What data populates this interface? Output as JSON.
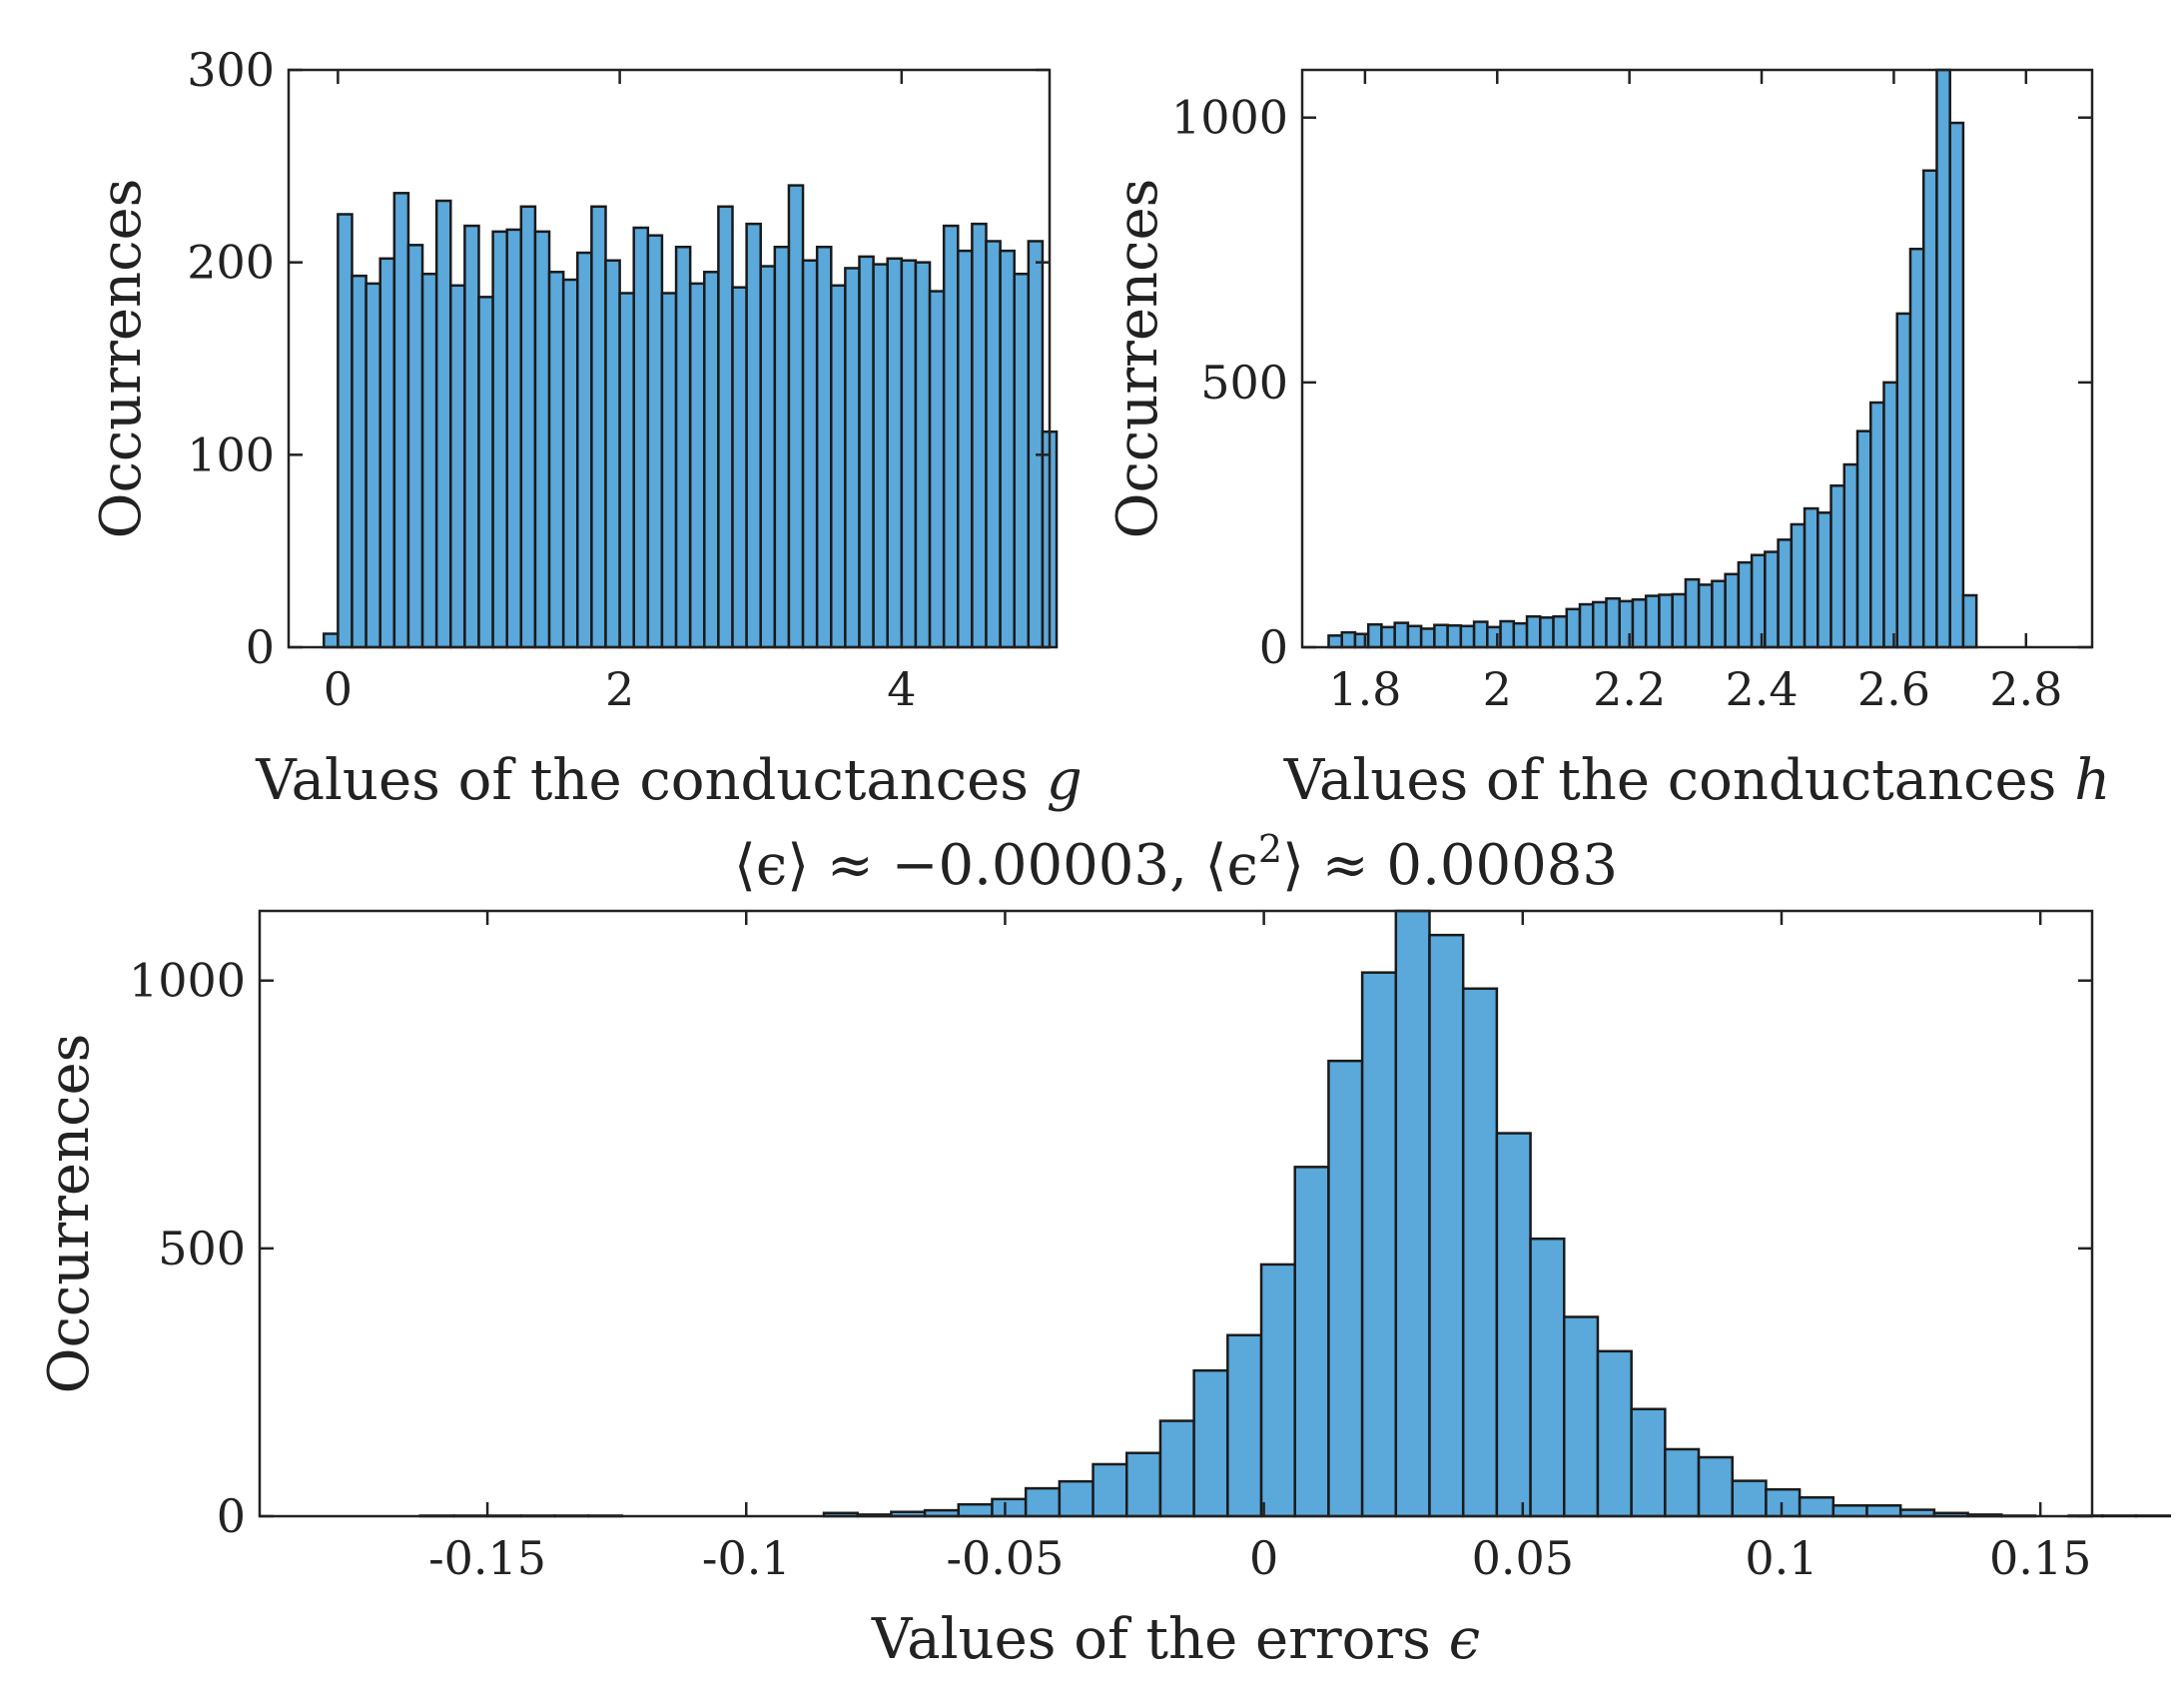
{
  "colors": {
    "bar_fill": "#5ba8da",
    "bar_edge": "#1a1a1a",
    "axis": "#222222",
    "background": "#ffffff"
  },
  "chart_data": [
    {
      "type": "bar",
      "title": "",
      "xlabel": "Values of the conductances g",
      "xlabel_text": "Values of the conductances ",
      "xlabel_symbol": "g",
      "ylabel": "Occurrences",
      "xlim": [
        -0.35,
        5.05
      ],
      "ylim": [
        0,
        300
      ],
      "xticks": [
        0,
        2,
        4
      ],
      "xtick_labels": [
        "0",
        "2",
        "4"
      ],
      "yticks": [
        0,
        100,
        200,
        300
      ],
      "ytick_labels": [
        "0",
        "100",
        "200",
        "300"
      ],
      "bin_start": -0.1,
      "bin_width": 0.1,
      "values": [
        7,
        225,
        193,
        189,
        202,
        236,
        209,
        194,
        232,
        188,
        219,
        182,
        216,
        217,
        229,
        216,
        195,
        191,
        205,
        229,
        201,
        184,
        218,
        214,
        184,
        208,
        189,
        195,
        229,
        187,
        220,
        198,
        208,
        240,
        201,
        208,
        188,
        197,
        203,
        199,
        202,
        201,
        200,
        185,
        219,
        206,
        220,
        211,
        206,
        194,
        211,
        112
      ]
    },
    {
      "type": "bar",
      "title": "",
      "xlabel": "Values of the conductances h",
      "xlabel_text": "Values of the conductances ",
      "xlabel_symbol": "h",
      "ylabel": "Occurrences",
      "xlim": [
        1.705,
        2.9
      ],
      "ylim": [
        0,
        1090
      ],
      "xticks": [
        1.8,
        2.0,
        2.2,
        2.4,
        2.6,
        2.8
      ],
      "xtick_labels": [
        "1.8",
        "2",
        "2.2",
        "2.4",
        "2.6",
        "2.8"
      ],
      "yticks": [
        0,
        500,
        1000
      ],
      "ytick_labels": [
        "0",
        "500",
        "1000"
      ],
      "bin_start": 1.745,
      "bin_width": 0.02,
      "values": [
        22,
        28,
        25,
        43,
        38,
        46,
        40,
        35,
        42,
        41,
        40,
        48,
        38,
        49,
        45,
        58,
        56,
        58,
        72,
        81,
        85,
        92,
        87,
        90,
        97,
        99,
        100,
        128,
        118,
        125,
        138,
        160,
        174,
        180,
        203,
        232,
        262,
        254,
        305,
        345,
        408,
        462,
        500,
        630,
        752,
        900,
        1090,
        990,
        98
      ]
    },
    {
      "type": "bar",
      "title": "⟨ϵ⟩ ≈ −0.00003, ⟨ϵ²⟩ ≈ 0.00083",
      "title_parts": {
        "mean_open": "⟨ϵ⟩ ≈ −0.00003, ⟨ϵ",
        "sq_exponent": "2",
        "sq_close": "⟩ ≈ 0.00083"
      },
      "xlabel": "Values of the errors ϵ",
      "xlabel_text": "Values of the errors ",
      "xlabel_symbol": "ϵ",
      "ylabel": "Occurrences",
      "xlim": [
        -0.194,
        0.16
      ],
      "ylim": [
        0,
        1130
      ],
      "xticks": [
        -0.15,
        -0.1,
        -0.05,
        0,
        0.05,
        0.1,
        0.15
      ],
      "xtick_labels": [
        "-0.15",
        "-0.1",
        "-0.05",
        "0",
        "0.05",
        "0.1",
        "0.15"
      ],
      "yticks": [
        0,
        500,
        1000
      ],
      "ytick_labels": [
        "0",
        "500",
        "1000"
      ],
      "bin_start": -0.1825,
      "bin_width": 0.0065,
      "values": [
        0,
        0,
        0,
        1,
        1,
        1,
        1,
        1,
        1,
        0,
        0,
        0,
        0,
        0,
        0,
        6,
        3,
        8,
        11,
        22,
        32,
        52,
        65,
        97,
        118,
        178,
        272,
        338,
        470,
        652,
        850,
        1015,
        1130,
        1085,
        985,
        715,
        518,
        372,
        308,
        200,
        125,
        110,
        66,
        50,
        35,
        20,
        20,
        12,
        6,
        3,
        1,
        0,
        1,
        1,
        1,
        0
      ]
    }
  ]
}
